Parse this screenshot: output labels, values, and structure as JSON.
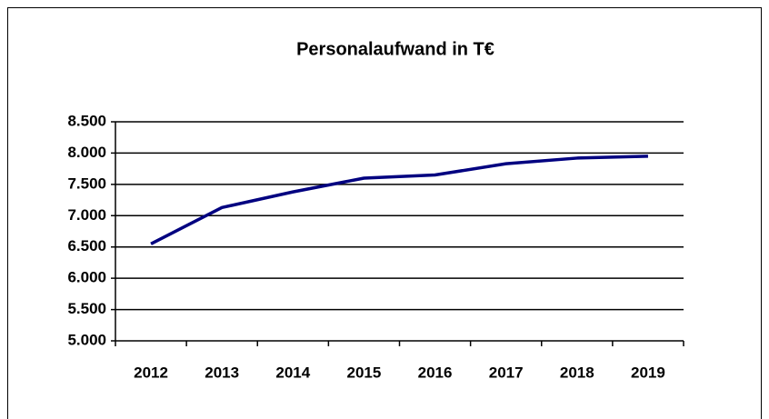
{
  "chart_data": {
    "type": "line",
    "title": "Personalaufwand in T€",
    "categories": [
      "2012",
      "2013",
      "2014",
      "2015",
      "2016",
      "2017",
      "2018",
      "2019"
    ],
    "series": [
      {
        "name": "Personalaufwand",
        "color": "#000080",
        "values": [
          6550,
          7130,
          7380,
          7600,
          7650,
          7830,
          7920,
          7950
        ]
      }
    ],
    "ylim": [
      5000,
      8500
    ],
    "yticks": [
      {
        "value": 5000,
        "label": "5.000"
      },
      {
        "value": 5500,
        "label": "5.500"
      },
      {
        "value": 6000,
        "label": "6.000"
      },
      {
        "value": 6500,
        "label": "6.500"
      },
      {
        "value": 7000,
        "label": "7.000"
      },
      {
        "value": 7500,
        "label": "7.500"
      },
      {
        "value": 8000,
        "label": "8.000"
      },
      {
        "value": 8500,
        "label": "8.500"
      }
    ],
    "grid": true
  }
}
